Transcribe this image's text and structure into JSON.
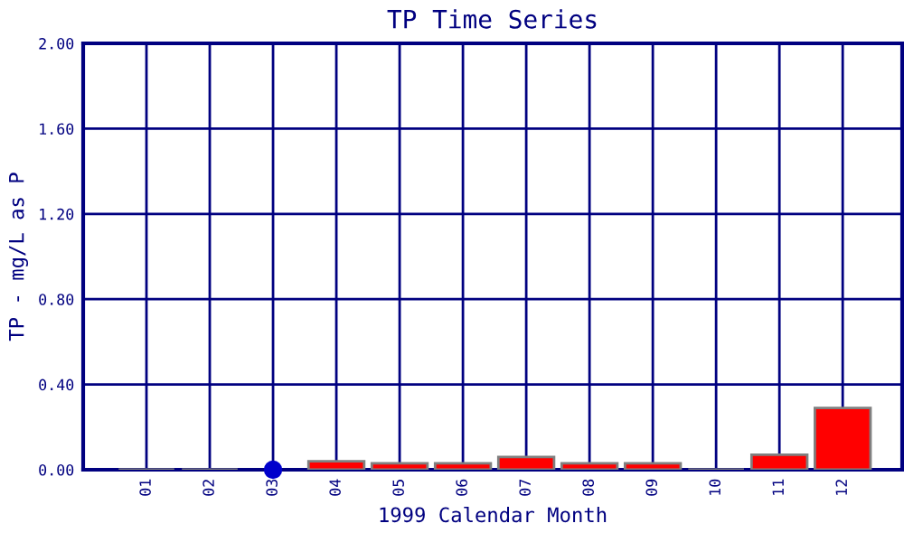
{
  "chart_data": {
    "type": "bar",
    "title": "TP Time Series",
    "xlabel": "1999 Calendar Month",
    "ylabel": "TP - mg/L as P",
    "categories": [
      "01",
      "02",
      "03",
      "04",
      "05",
      "06",
      "07",
      "08",
      "09",
      "10",
      "11",
      "12"
    ],
    "series": [
      {
        "colors": [
          "#808080",
          "#808080",
          null,
          "#ff0000",
          "#ff0000",
          "#ff0000",
          "#ff0000",
          "#ff0000",
          "#ff0000",
          "#808080",
          "#ff0000",
          "#ff0000"
        ],
        "values": [
          0,
          0,
          null,
          0.04,
          0.03,
          0.03,
          0.06,
          0.03,
          0.03,
          0,
          0.07,
          0.29
        ]
      },
      {
        "type": "scatter",
        "color": "#0000cc",
        "x": [
          "03"
        ],
        "values": [
          0
        ]
      }
    ],
    "ylim": [
      0,
      2
    ],
    "yticks": [
      {
        "value": 0,
        "label": "0.00"
      },
      {
        "value": 0.4,
        "label": "0.40"
      },
      {
        "value": 0.8,
        "label": "0.80"
      },
      {
        "value": 1.2,
        "label": "1.20"
      },
      {
        "value": 1.6,
        "label": "1.60"
      },
      {
        "value": 2,
        "label": "2.00"
      }
    ],
    "grid": true,
    "legend": false
  }
}
